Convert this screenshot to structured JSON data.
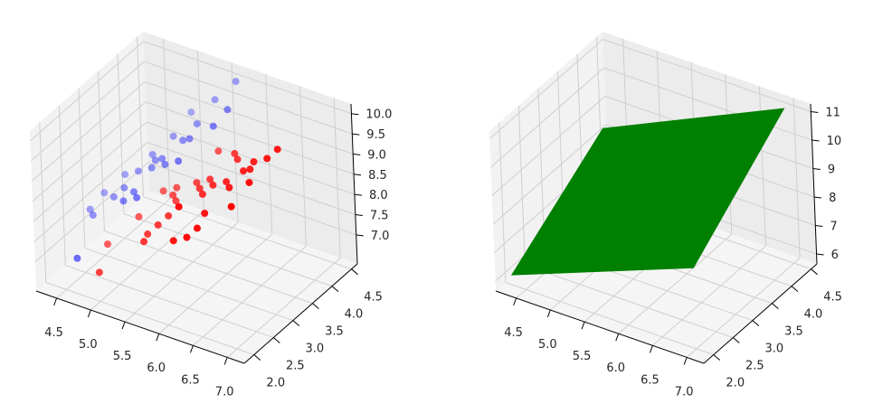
{
  "chart_data": [
    {
      "type": "scatter3d",
      "title": "",
      "xlabel": "",
      "ylabel": "",
      "zlabel": "",
      "xlim": [
        4.2,
        7.25
      ],
      "ylim": [
        1.75,
        4.65
      ],
      "zlim": [
        6.28,
        10.24
      ],
      "xticks": [
        "4.5",
        "5.0",
        "5.5",
        "6.0",
        "6.5",
        "7.0"
      ],
      "yticks": [
        "2.0",
        "2.5",
        "3.0",
        "3.5",
        "4.0",
        "4.5"
      ],
      "zticks": [
        "7.0",
        "7.5",
        "8.0",
        "8.5",
        "9.0",
        "9.5",
        "10.0"
      ],
      "grid": true,
      "depthshade": true,
      "series": [
        {
          "color": "#0000ff",
          "points": [
            [
              4.3,
              3.0,
              7.3
            ],
            [
              4.4,
              2.9,
              7.3
            ],
            [
              4.4,
              3.2,
              7.6
            ],
            [
              4.6,
              3.1,
              7.7
            ],
            [
              4.6,
              3.4,
              8.0
            ],
            [
              4.7,
              3.2,
              7.9
            ],
            [
              4.8,
              3.0,
              7.8
            ],
            [
              4.8,
              3.4,
              8.2
            ],
            [
              4.9,
              3.1,
              8.0
            ],
            [
              5.0,
              3.0,
              8.0
            ],
            [
              5.0,
              3.4,
              8.4
            ],
            [
              5.0,
              3.5,
              8.5
            ],
            [
              5.1,
              3.5,
              8.6
            ],
            [
              5.1,
              3.8,
              8.9
            ],
            [
              5.2,
              3.4,
              8.6
            ],
            [
              5.3,
              3.7,
              9.0
            ],
            [
              5.4,
              3.9,
              9.3
            ],
            [
              5.4,
              3.4,
              8.8
            ],
            [
              5.5,
              4.2,
              9.7
            ],
            [
              5.7,
              3.8,
              9.5
            ],
            [
              5.7,
              4.4,
              10.1
            ],
            [
              5.8,
              4.0,
              9.8
            ],
            [
              5.4,
              3.7,
              9.1
            ],
            [
              4.5,
              2.3,
              6.8
            ],
            [
              5.2,
              4.1,
              9.3
            ],
            [
              4.9,
              3.6,
              8.5
            ]
          ]
        },
        {
          "color": "#ff0000",
          "points": [
            [
              4.9,
              2.4,
              7.3
            ],
            [
              5.0,
              2.0,
              7.0
            ],
            [
              5.2,
              2.7,
              7.9
            ],
            [
              5.5,
              2.3,
              7.8
            ],
            [
              5.6,
              2.5,
              8.1
            ],
            [
              5.6,
              2.9,
              8.5
            ],
            [
              5.7,
              2.8,
              8.5
            ],
            [
              5.8,
              2.7,
              8.5
            ],
            [
              5.9,
              3.0,
              8.9
            ],
            [
              6.0,
              2.2,
              8.2
            ],
            [
              6.0,
              2.9,
              8.9
            ],
            [
              6.1,
              2.8,
              8.9
            ],
            [
              6.2,
              2.2,
              8.4
            ],
            [
              6.3,
              2.5,
              8.8
            ],
            [
              6.3,
              3.3,
              9.6
            ],
            [
              6.4,
              2.9,
              9.3
            ],
            [
              6.5,
              2.8,
              9.3
            ],
            [
              6.6,
              3.0,
              9.6
            ],
            [
              6.7,
              3.1,
              9.8
            ],
            [
              6.7,
              2.5,
              9.2
            ],
            [
              6.8,
              2.8,
              9.6
            ],
            [
              6.9,
              3.1,
              10.0
            ],
            [
              7.0,
              3.2,
              10.2
            ],
            [
              5.5,
              2.4,
              7.9
            ],
            [
              5.7,
              2.6,
              8.3
            ],
            [
              6.1,
              3.0,
              9.1
            ],
            [
              5.8,
              2.7,
              8.5
            ],
            [
              6.4,
              3.2,
              9.6
            ],
            [
              5.4,
              3.0,
              8.4
            ],
            [
              6.0,
              3.4,
              9.4
            ],
            [
              6.7,
              3.0,
              9.7
            ],
            [
              6.3,
              2.3,
              8.6
            ],
            [
              5.6,
              3.0,
              8.6
            ],
            [
              6.2,
              2.9,
              9.1
            ]
          ]
        }
      ]
    },
    {
      "type": "surface3d",
      "title": "",
      "xlabel": "",
      "ylabel": "",
      "zlabel": "",
      "xlim": [
        4.2,
        7.25
      ],
      "ylim": [
        1.75,
        4.65
      ],
      "zlim": [
        5.65,
        11.27
      ],
      "xticks": [
        "4.5",
        "5.0",
        "5.5",
        "6.0",
        "6.5",
        "7.0"
      ],
      "yticks": [
        "2.0",
        "2.5",
        "3.0",
        "3.5",
        "4.0",
        "4.5"
      ],
      "zticks": [
        "6",
        "7",
        "8",
        "9",
        "10",
        "11"
      ],
      "grid": true,
      "color": "#008000",
      "surface": {
        "x": [
          4.3,
          7.0
        ],
        "y": [
          2.0,
          4.4
        ],
        "z": [
          [
            6.0,
            8.5
          ],
          [
            8.25,
            11.2
          ]
        ]
      }
    }
  ]
}
